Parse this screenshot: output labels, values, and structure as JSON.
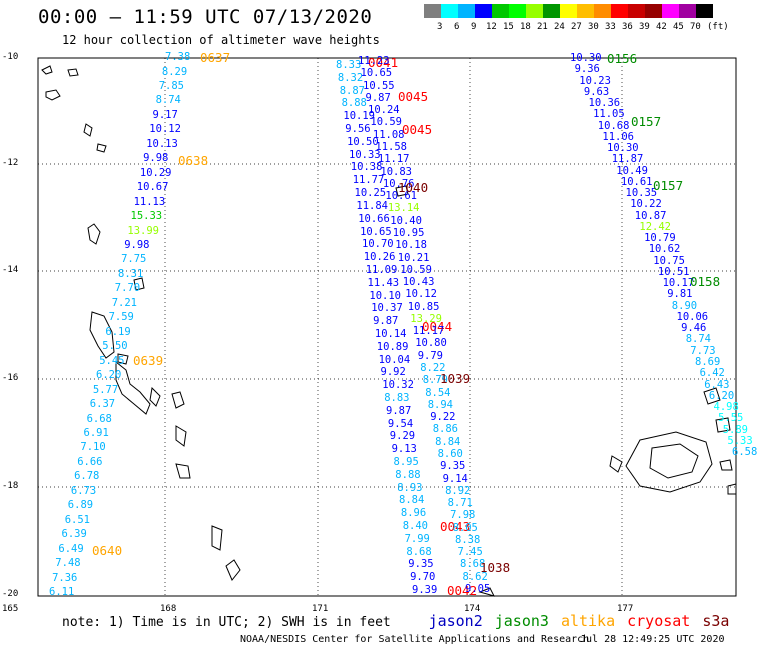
{
  "title": "00:00  –  11:59 UTC 07/13/2020",
  "subtitle": "12 hour collection of altimeter wave heights",
  "color_scale": {
    "unit": "(ft)",
    "ticks": [
      "3",
      "6",
      "9",
      "12",
      "15",
      "18",
      "21",
      "24",
      "27",
      "30",
      "33",
      "36",
      "39",
      "42",
      "45",
      "70"
    ],
    "colors": [
      "#7f7f7f",
      "#00ffff",
      "#00b4ff",
      "#0000ff",
      "#00c800",
      "#00ff00",
      "#96ff00",
      "#009600",
      "#ffff00",
      "#ffbe00",
      "#ff8c00",
      "#ff0000",
      "#c80000",
      "#960000",
      "#ff00ff",
      "#a000a0",
      "#000000"
    ]
  },
  "axes": {
    "lat_labels": [
      "-10",
      "-12",
      "-14",
      "-16",
      "-18",
      "-20"
    ],
    "lon_labels": [
      "165",
      "168",
      "171",
      "174",
      "177"
    ]
  },
  "satellites": [
    {
      "name": "jason2",
      "color": "#0000c0"
    },
    {
      "name": "jason3",
      "color": "#008c00"
    },
    {
      "name": "altika",
      "color": "#ffa500"
    },
    {
      "name": "cryosat",
      "color": "#ff0000"
    },
    {
      "name": "s3a",
      "color": "#7a0000"
    }
  ],
  "note": "note: 1) Time is in UTC; 2) SWH is in feet",
  "footer": "NOAA/NESDIS Center for Satellite Applications and Research",
  "footer_date": "Jul 28 12:49:25 UTC 2020",
  "tracks": [
    {
      "name": "altika-west",
      "times": [
        "0637",
        "0638",
        "0639",
        "0640"
      ],
      "time_color": "#ffa500",
      "points": [
        {
          "v": "7.38",
          "c": "#00b4ff"
        },
        {
          "v": "8.29",
          "c": "#00b4ff"
        },
        {
          "v": "7.85",
          "c": "#00b4ff"
        },
        {
          "v": "8.74",
          "c": "#00b4ff"
        },
        {
          "v": "9.17",
          "c": "#0000ff"
        },
        {
          "v": "10.12",
          "c": "#0000ff"
        },
        {
          "v": "10.13",
          "c": "#0000ff"
        },
        {
          "v": "9.98",
          "c": "#0000ff"
        },
        {
          "v": "10.29",
          "c": "#0000ff"
        },
        {
          "v": "10.67",
          "c": "#0000ff"
        },
        {
          "v": "11.13",
          "c": "#0000ff"
        },
        {
          "v": "15.33",
          "c": "#00c800"
        },
        {
          "v": "13.99",
          "c": "#96ff00"
        },
        {
          "v": "9.98",
          "c": "#0000ff"
        },
        {
          "v": "7.75",
          "c": "#00b4ff"
        },
        {
          "v": "8.31",
          "c": "#00b4ff"
        },
        {
          "v": "7.70",
          "c": "#00b4ff"
        },
        {
          "v": "7.21",
          "c": "#00b4ff"
        },
        {
          "v": "7.59",
          "c": "#00b4ff"
        },
        {
          "v": "6.19",
          "c": "#00b4ff"
        },
        {
          "v": "5.50",
          "c": "#00b4ff"
        },
        {
          "v": "5.45",
          "c": "#00b4ff"
        },
        {
          "v": "6.20",
          "c": "#00b4ff"
        },
        {
          "v": "5.77",
          "c": "#00b4ff"
        },
        {
          "v": "6.37",
          "c": "#00b4ff"
        },
        {
          "v": "6.68",
          "c": "#00b4ff"
        },
        {
          "v": "6.91",
          "c": "#00b4ff"
        },
        {
          "v": "7.10",
          "c": "#00b4ff"
        },
        {
          "v": "6.66",
          "c": "#00b4ff"
        },
        {
          "v": "6.78",
          "c": "#00b4ff"
        },
        {
          "v": "6.73",
          "c": "#00b4ff"
        },
        {
          "v": "6.89",
          "c": "#00b4ff"
        },
        {
          "v": "6.51",
          "c": "#00b4ff"
        },
        {
          "v": "6.39",
          "c": "#00b4ff"
        },
        {
          "v": "6.49",
          "c": "#00b4ff"
        },
        {
          "v": "7.48",
          "c": "#00b4ff"
        },
        {
          "v": "7.36",
          "c": "#00b4ff"
        },
        {
          "v": "6.11",
          "c": "#00b4ff"
        }
      ]
    },
    {
      "name": "cryosat-middle-a",
      "times": [
        "0041",
        "0045",
        "0045",
        "0044",
        "0043",
        "0042"
      ],
      "time_color": "#ff0000",
      "points": [
        {
          "v": "8.33",
          "c": "#00b4ff"
        },
        {
          "v": "8.32",
          "c": "#00b4ff"
        },
        {
          "v": "8.87",
          "c": "#00b4ff"
        },
        {
          "v": "8.88",
          "c": "#00b4ff"
        },
        {
          "v": "10.19",
          "c": "#0000ff"
        },
        {
          "v": "9.56",
          "c": "#0000ff"
        },
        {
          "v": "10.50",
          "c": "#0000ff"
        },
        {
          "v": "10.33",
          "c": "#0000ff"
        },
        {
          "v": "10.38",
          "c": "#0000ff"
        },
        {
          "v": "11.77",
          "c": "#0000ff"
        },
        {
          "v": "10.25",
          "c": "#0000ff"
        },
        {
          "v": "11.84",
          "c": "#0000ff"
        },
        {
          "v": "10.66",
          "c": "#0000ff"
        },
        {
          "v": "10.65",
          "c": "#0000ff"
        },
        {
          "v": "10.70",
          "c": "#0000ff"
        },
        {
          "v": "10.26",
          "c": "#0000ff"
        },
        {
          "v": "11.09",
          "c": "#0000ff"
        },
        {
          "v": "11.43",
          "c": "#0000ff"
        },
        {
          "v": "10.10",
          "c": "#0000ff"
        },
        {
          "v": "10.37",
          "c": "#0000ff"
        },
        {
          "v": "9.87",
          "c": "#0000ff"
        },
        {
          "v": "10.14",
          "c": "#0000ff"
        },
        {
          "v": "10.89",
          "c": "#0000ff"
        },
        {
          "v": "10.04",
          "c": "#0000ff"
        },
        {
          "v": "9.92",
          "c": "#0000ff"
        },
        {
          "v": "10.32",
          "c": "#0000ff"
        },
        {
          "v": "8.83",
          "c": "#00b4ff"
        },
        {
          "v": "9.87",
          "c": "#0000ff"
        },
        {
          "v": "9.54",
          "c": "#0000ff"
        },
        {
          "v": "9.29",
          "c": "#0000ff"
        },
        {
          "v": "9.13",
          "c": "#0000ff"
        },
        {
          "v": "8.95",
          "c": "#00b4ff"
        },
        {
          "v": "8.88",
          "c": "#00b4ff"
        },
        {
          "v": "8.93",
          "c": "#00b4ff"
        },
        {
          "v": "8.84",
          "c": "#00b4ff"
        },
        {
          "v": "8.96",
          "c": "#00b4ff"
        },
        {
          "v": "8.40",
          "c": "#00b4ff"
        },
        {
          "v": "7.99",
          "c": "#00b4ff"
        },
        {
          "v": "8.68",
          "c": "#00b4ff"
        },
        {
          "v": "9.35",
          "c": "#0000ff"
        },
        {
          "v": "9.70",
          "c": "#0000ff"
        },
        {
          "v": "9.39",
          "c": "#0000ff"
        }
      ]
    },
    {
      "name": "s3a-middle-b",
      "times": [
        "1040",
        "1039",
        "1038"
      ],
      "time_color": "#7a0000",
      "points": [
        {
          "v": "11.23",
          "c": "#0000ff"
        },
        {
          "v": "10.65",
          "c": "#0000ff"
        },
        {
          "v": "10.55",
          "c": "#0000ff"
        },
        {
          "v": "9.87",
          "c": "#0000ff"
        },
        {
          "v": "10.24",
          "c": "#0000ff"
        },
        {
          "v": "10.59",
          "c": "#0000ff"
        },
        {
          "v": "11.08",
          "c": "#0000ff"
        },
        {
          "v": "11.58",
          "c": "#0000ff"
        },
        {
          "v": "11.17",
          "c": "#0000ff"
        },
        {
          "v": "10.83",
          "c": "#0000ff"
        },
        {
          "v": "10.76",
          "c": "#0000ff"
        },
        {
          "v": "10.61",
          "c": "#0000ff"
        },
        {
          "v": "13.14",
          "c": "#96ff00"
        },
        {
          "v": "10.40",
          "c": "#0000ff"
        },
        {
          "v": "10.95",
          "c": "#0000ff"
        },
        {
          "v": "10.18",
          "c": "#0000ff"
        },
        {
          "v": "10.21",
          "c": "#0000ff"
        },
        {
          "v": "10.59",
          "c": "#0000ff"
        },
        {
          "v": "10.43",
          "c": "#0000ff"
        },
        {
          "v": "10.12",
          "c": "#0000ff"
        },
        {
          "v": "10.85",
          "c": "#0000ff"
        },
        {
          "v": "13.29",
          "c": "#96ff00"
        },
        {
          "v": "11.17",
          "c": "#0000ff"
        },
        {
          "v": "10.80",
          "c": "#0000ff"
        },
        {
          "v": "9.79",
          "c": "#0000ff"
        },
        {
          "v": "8.22",
          "c": "#00b4ff"
        },
        {
          "v": "8.79",
          "c": "#00b4ff"
        },
        {
          "v": "8.54",
          "c": "#00b4ff"
        },
        {
          "v": "8.94",
          "c": "#00b4ff"
        },
        {
          "v": "9.22",
          "c": "#0000ff"
        },
        {
          "v": "8.86",
          "c": "#00b4ff"
        },
        {
          "v": "8.84",
          "c": "#00b4ff"
        },
        {
          "v": "8.60",
          "c": "#00b4ff"
        },
        {
          "v": "9.35",
          "c": "#0000ff"
        },
        {
          "v": "9.14",
          "c": "#0000ff"
        },
        {
          "v": "8.92",
          "c": "#00b4ff"
        },
        {
          "v": "8.71",
          "c": "#00b4ff"
        },
        {
          "v": "7.98",
          "c": "#00b4ff"
        },
        {
          "v": "8.05",
          "c": "#00b4ff"
        },
        {
          "v": "8.38",
          "c": "#00b4ff"
        },
        {
          "v": "7.45",
          "c": "#00b4ff"
        },
        {
          "v": "8.68",
          "c": "#00b4ff"
        },
        {
          "v": "8.62",
          "c": "#00b4ff"
        },
        {
          "v": "9.05",
          "c": "#0000ff"
        }
      ]
    },
    {
      "name": "jason3-east",
      "times": [
        "0156",
        "0157",
        "0157",
        "0158"
      ],
      "time_color": "#008c00",
      "points": [
        {
          "v": "10.30",
          "c": "#0000ff"
        },
        {
          "v": "9.36",
          "c": "#0000ff"
        },
        {
          "v": "10.23",
          "c": "#0000ff"
        },
        {
          "v": "9.63",
          "c": "#0000ff"
        },
        {
          "v": "10.36",
          "c": "#0000ff"
        },
        {
          "v": "11.05",
          "c": "#0000ff"
        },
        {
          "v": "10.68",
          "c": "#0000ff"
        },
        {
          "v": "11.06",
          "c": "#0000ff"
        },
        {
          "v": "10.30",
          "c": "#0000ff"
        },
        {
          "v": "11.87",
          "c": "#0000ff"
        },
        {
          "v": "10.49",
          "c": "#0000ff"
        },
        {
          "v": "10.61",
          "c": "#0000ff"
        },
        {
          "v": "10.35",
          "c": "#0000ff"
        },
        {
          "v": "10.22",
          "c": "#0000ff"
        },
        {
          "v": "10.87",
          "c": "#0000ff"
        },
        {
          "v": "12.42",
          "c": "#96ff00"
        },
        {
          "v": "10.79",
          "c": "#0000ff"
        },
        {
          "v": "10.62",
          "c": "#0000ff"
        },
        {
          "v": "10.75",
          "c": "#0000ff"
        },
        {
          "v": "10.51",
          "c": "#0000ff"
        },
        {
          "v": "10.17",
          "c": "#0000ff"
        },
        {
          "v": "9.81",
          "c": "#0000ff"
        },
        {
          "v": "8.90",
          "c": "#00b4ff"
        },
        {
          "v": "10.06",
          "c": "#0000ff"
        },
        {
          "v": "9.46",
          "c": "#0000ff"
        },
        {
          "v": "8.74",
          "c": "#00b4ff"
        },
        {
          "v": "7.73",
          "c": "#00b4ff"
        },
        {
          "v": "8.69",
          "c": "#00b4ff"
        },
        {
          "v": "6.42",
          "c": "#00b4ff"
        },
        {
          "v": "6.43",
          "c": "#00b4ff"
        },
        {
          "v": "6.20",
          "c": "#00b4ff"
        },
        {
          "v": "4.98",
          "c": "#00ffff"
        },
        {
          "v": "5.55",
          "c": "#00ffff"
        },
        {
          "v": "5.89",
          "c": "#00ffff"
        },
        {
          "v": "5.33",
          "c": "#00ffff"
        },
        {
          "v": "6.58",
          "c": "#00b4ff"
        }
      ]
    }
  ]
}
